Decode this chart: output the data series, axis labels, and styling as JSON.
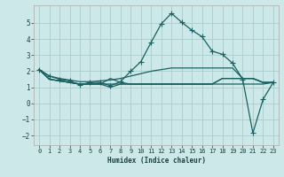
{
  "title": "",
  "xlabel": "Humidex (Indice chaleur)",
  "background_color": "#cce8e8",
  "grid_color": "#aacccc",
  "line_color": "#1a6060",
  "xlim": [
    -0.5,
    23.5
  ],
  "ylim": [
    -2.6,
    6.1
  ],
  "yticks": [
    -2,
    -1,
    0,
    1,
    2,
    3,
    4,
    5
  ],
  "xticks": [
    0,
    1,
    2,
    3,
    4,
    5,
    6,
    7,
    8,
    9,
    10,
    11,
    12,
    13,
    14,
    15,
    16,
    17,
    18,
    19,
    20,
    21,
    22,
    23
  ],
  "series_main": [
    2.1,
    1.7,
    1.5,
    1.4,
    1.15,
    1.3,
    1.3,
    1.1,
    1.35,
    2.0,
    2.6,
    3.8,
    4.95,
    5.6,
    5.05,
    4.55,
    4.15,
    3.25,
    3.05,
    2.5,
    1.5,
    -1.85,
    0.25,
    1.3
  ],
  "series_slope": [
    2.1,
    1.7,
    1.55,
    1.45,
    1.35,
    1.35,
    1.4,
    1.45,
    1.55,
    1.7,
    1.85,
    2.0,
    2.1,
    2.2,
    2.2,
    2.2,
    2.2,
    2.2,
    2.2,
    2.2,
    1.55,
    1.55,
    1.3,
    1.3
  ],
  "series_flat1": [
    2.1,
    1.5,
    1.4,
    1.3,
    1.2,
    1.2,
    1.2,
    1.0,
    1.2,
    1.2,
    1.2,
    1.2,
    1.2,
    1.2,
    1.2,
    1.2,
    1.2,
    1.2,
    1.55,
    1.55,
    1.55,
    1.55,
    1.3,
    1.3
  ],
  "series_flat2": [
    2.1,
    1.5,
    1.4,
    1.3,
    1.2,
    1.2,
    1.2,
    1.55,
    1.3,
    1.2,
    1.2,
    1.2,
    1.2,
    1.2,
    1.2,
    1.2,
    1.2,
    1.2,
    1.55,
    1.55,
    1.55,
    1.55,
    1.3,
    1.3
  ],
  "series_flat3": [
    2.1,
    1.5,
    1.4,
    1.3,
    1.2,
    1.2,
    1.2,
    1.2,
    1.2,
    1.2,
    1.2,
    1.2,
    1.2,
    1.2,
    1.2,
    1.2,
    1.2,
    1.2,
    1.2,
    1.2,
    1.2,
    1.2,
    1.2,
    1.3
  ],
  "markersize": 2.5,
  "linewidth": 0.9
}
